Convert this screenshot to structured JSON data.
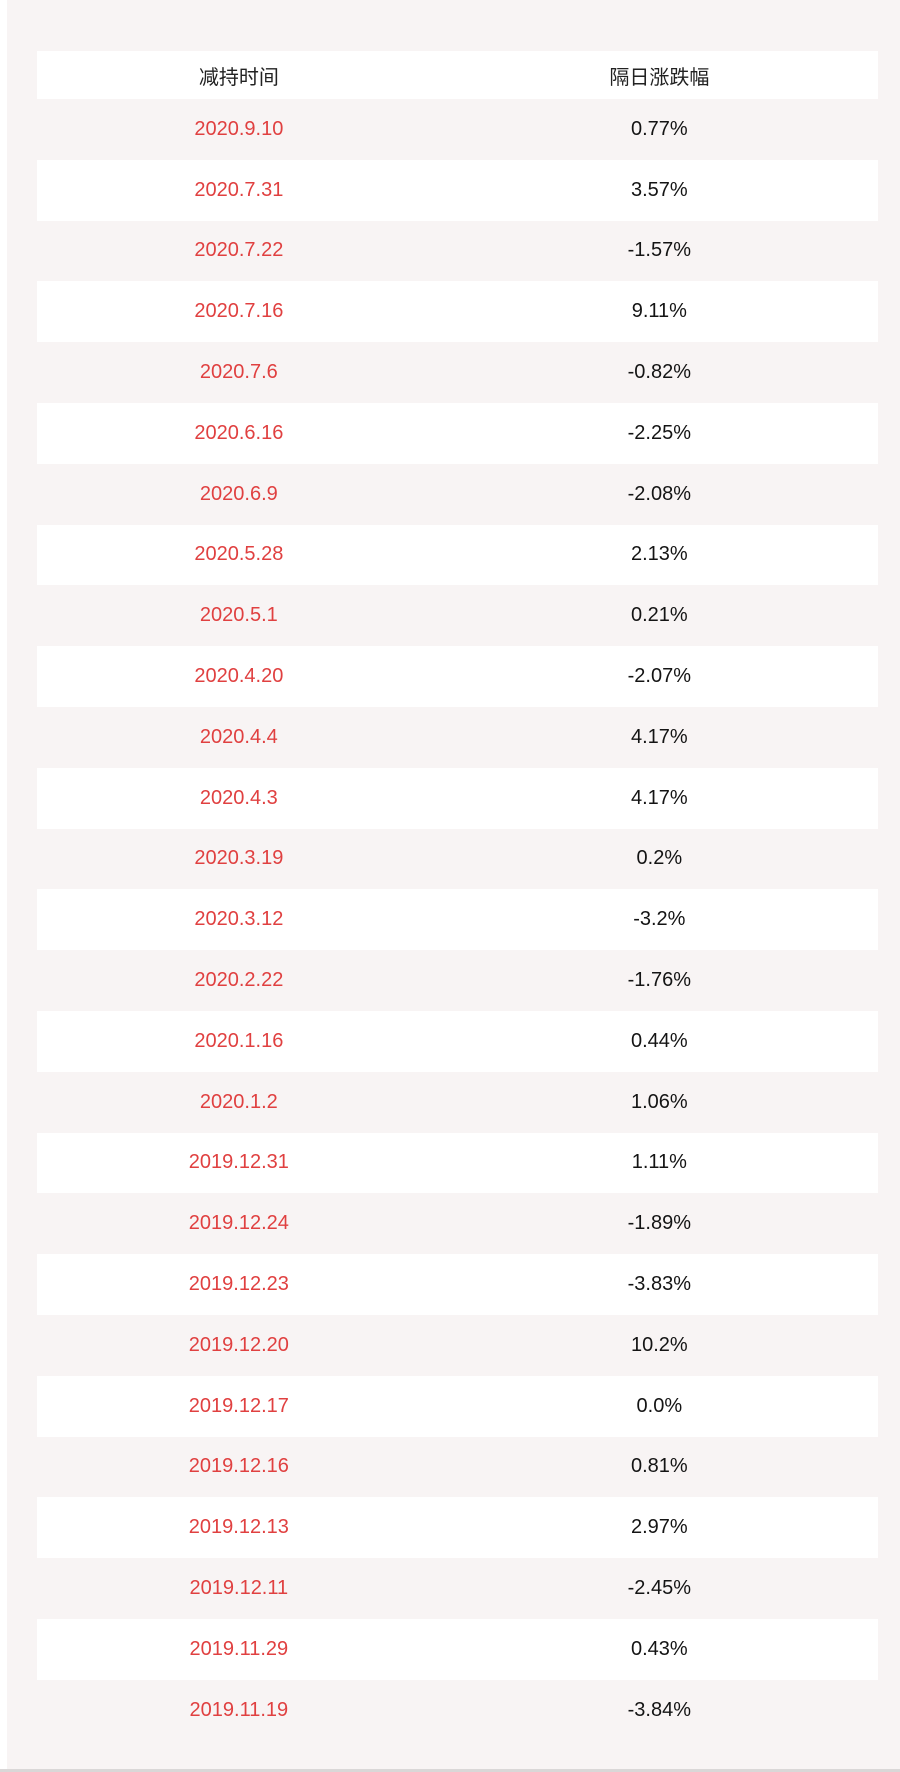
{
  "page": {
    "background_color": "#f8f4f4",
    "left_strip_color": "#ffffff",
    "bottom_line_color": "#dad7d7",
    "row_white_color": "#ffffff",
    "row_pink_color": "#f8f4f4",
    "date_text_color": "#e04040",
    "change_text_color": "#141414",
    "header_text_color": "#222222"
  },
  "chart_data": {
    "type": "table",
    "columns": [
      "减持时间",
      "隔日涨跌幅"
    ],
    "rows": [
      {
        "date": "2020.9.10",
        "change": "0.77%"
      },
      {
        "date": "2020.7.31",
        "change": "3.57%"
      },
      {
        "date": "2020.7.22",
        "change": "-1.57%"
      },
      {
        "date": "2020.7.16",
        "change": "9.11%"
      },
      {
        "date": "2020.7.6",
        "change": "-0.82%"
      },
      {
        "date": "2020.6.16",
        "change": "-2.25%"
      },
      {
        "date": "2020.6.9",
        "change": "-2.08%"
      },
      {
        "date": "2020.5.28",
        "change": "2.13%"
      },
      {
        "date": "2020.5.1",
        "change": "0.21%"
      },
      {
        "date": "2020.4.20",
        "change": "-2.07%"
      },
      {
        "date": "2020.4.4",
        "change": "4.17%"
      },
      {
        "date": "2020.4.3",
        "change": "4.17%"
      },
      {
        "date": "2020.3.19",
        "change": "0.2%"
      },
      {
        "date": "2020.3.12",
        "change": "-3.2%"
      },
      {
        "date": "2020.2.22",
        "change": "-1.76%"
      },
      {
        "date": "2020.1.16",
        "change": "0.44%"
      },
      {
        "date": "2020.1.2",
        "change": "1.06%"
      },
      {
        "date": "2019.12.31",
        "change": "1.11%"
      },
      {
        "date": "2019.12.24",
        "change": "-1.89%"
      },
      {
        "date": "2019.12.23",
        "change": "-3.83%"
      },
      {
        "date": "2019.12.20",
        "change": "10.2%"
      },
      {
        "date": "2019.12.17",
        "change": "0.0%"
      },
      {
        "date": "2019.12.16",
        "change": "0.81%"
      },
      {
        "date": "2019.12.13",
        "change": "2.97%"
      },
      {
        "date": "2019.12.11",
        "change": "-2.45%"
      },
      {
        "date": "2019.11.29",
        "change": "0.43%"
      },
      {
        "date": "2019.11.19",
        "change": "-3.84%"
      }
    ]
  }
}
